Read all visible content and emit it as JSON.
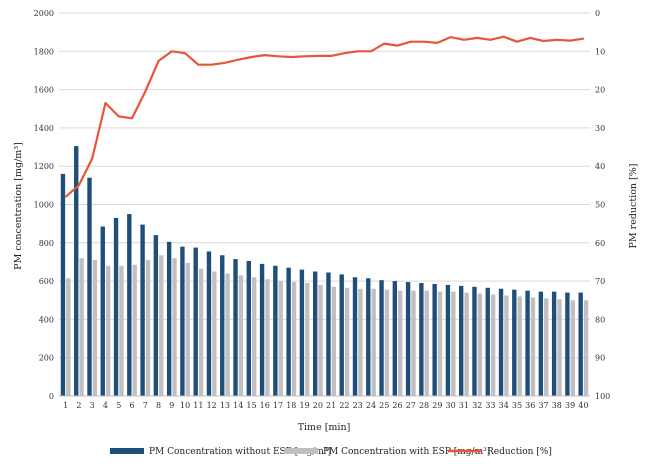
{
  "chart_data": {
    "type": "bar",
    "xlabel": "Time [min]",
    "ylabel": "PM concentration [mg/m³]",
    "y2label": "PM reduction [%]",
    "ylim": [
      0,
      2000
    ],
    "y_ticks": [
      "0",
      "200",
      "400",
      "600",
      "800",
      "1000",
      "1200",
      "1400",
      "1600",
      "1800",
      "2000"
    ],
    "y2lim": [
      100,
      0
    ],
    "y2_inverted": true,
    "y2_ticks": [
      "0",
      "10",
      "20",
      "30",
      "40",
      "50",
      "60",
      "70",
      "80",
      "90",
      "100"
    ],
    "grid": "horizontal",
    "legend_position": "bottom",
    "categories": [
      "1",
      "2",
      "3",
      "4",
      "5",
      "6",
      "7",
      "8",
      "9",
      "10",
      "11",
      "12",
      "13",
      "14",
      "15",
      "16",
      "17",
      "18",
      "19",
      "20",
      "21",
      "22",
      "23",
      "24",
      "25",
      "26",
      "27",
      "28",
      "29",
      "30",
      "31",
      "32",
      "33",
      "34",
      "35",
      "36",
      "37",
      "38",
      "39",
      "40"
    ],
    "series": [
      {
        "name": "PM Concentration without ESP [mg/m³]",
        "kind": "bar",
        "axis": "left",
        "color": "#1f4e79",
        "values": [
          1160,
          1305,
          1140,
          885,
          930,
          950,
          895,
          840,
          805,
          780,
          775,
          755,
          735,
          715,
          705,
          690,
          680,
          670,
          660,
          650,
          645,
          635,
          620,
          615,
          605,
          600,
          595,
          590,
          585,
          580,
          575,
          570,
          565,
          560,
          555,
          550,
          545,
          545,
          540,
          540
        ]
      },
      {
        "name": "PM Concentration with ESP [mg/m³]",
        "kind": "bar",
        "axis": "left",
        "color": "#c0c0c0",
        "values": [
          615,
          720,
          710,
          680,
          680,
          685,
          710,
          735,
          720,
          695,
          665,
          650,
          640,
          630,
          620,
          610,
          600,
          595,
          590,
          580,
          570,
          565,
          560,
          560,
          555,
          550,
          550,
          550,
          545,
          545,
          540,
          535,
          530,
          525,
          520,
          515,
          510,
          505,
          500,
          500
        ]
      },
      {
        "name": "Reduction [%]",
        "kind": "line",
        "axis": "right",
        "color": "#e8563a",
        "values": [
          48,
          45,
          38,
          23.5,
          27,
          27.5,
          20.5,
          12.5,
          10,
          10.5,
          13.5,
          13.5,
          13,
          12.2,
          11.5,
          11,
          11.3,
          11.5,
          11.3,
          11.2,
          11.2,
          10.5,
          10,
          10,
          8,
          8.5,
          7.5,
          7.5,
          7.8,
          6.3,
          7,
          6.5,
          7,
          6.2,
          7.5,
          6.5,
          7.3,
          7,
          7.2,
          6.7
        ]
      }
    ]
  }
}
